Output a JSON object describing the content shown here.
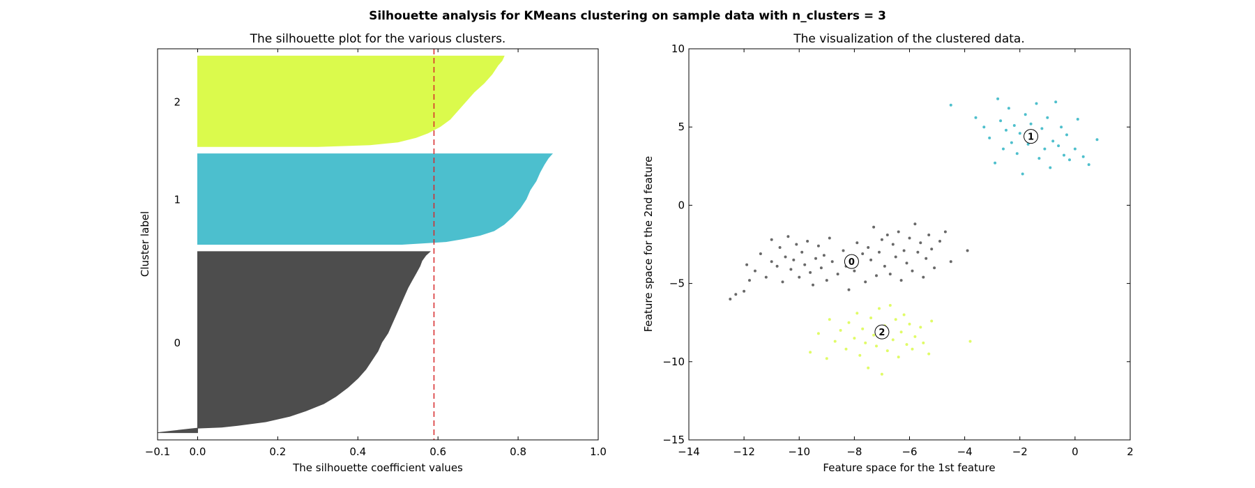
{
  "figure": {
    "suptitle": "Silhouette analysis for KMeans clustering on sample data with n_clusters = 3"
  },
  "chart_data": [
    {
      "type": "area",
      "title": "The silhouette plot for the various clusters.",
      "xlabel": "The silhouette coefficient values",
      "ylabel": "Cluster label",
      "xlim": [
        -0.1,
        1.0
      ],
      "xticks": [
        "−0.1",
        "0.0",
        "0.2",
        "0.4",
        "0.6",
        "0.8",
        "1.0"
      ],
      "average_silhouette": 0.59,
      "average_line_color": "#d62728",
      "clusters": [
        {
          "label": "0",
          "color": "#4d4d4d",
          "size": 250,
          "profile": [
            [
              0,
              0.58
            ],
            [
              0.02,
              0.57
            ],
            [
              0.05,
              0.56
            ],
            [
              0.08,
              0.555
            ],
            [
              0.12,
              0.545
            ],
            [
              0.16,
              0.535
            ],
            [
              0.2,
              0.525
            ],
            [
              0.25,
              0.515
            ],
            [
              0.3,
              0.505
            ],
            [
              0.35,
              0.495
            ],
            [
              0.4,
              0.485
            ],
            [
              0.45,
              0.475
            ],
            [
              0.5,
              0.46
            ],
            [
              0.55,
              0.45
            ],
            [
              0.6,
              0.435
            ],
            [
              0.65,
              0.42
            ],
            [
              0.7,
              0.4
            ],
            [
              0.75,
              0.375
            ],
            [
              0.8,
              0.345
            ],
            [
              0.84,
              0.315
            ],
            [
              0.88,
              0.27
            ],
            [
              0.91,
              0.23
            ],
            [
              0.94,
              0.17
            ],
            [
              0.96,
              0.1
            ],
            [
              0.97,
              0.06
            ],
            [
              0.975,
              0.0
            ],
            [
              0.98,
              -0.02
            ],
            [
              0.99,
              -0.06
            ],
            [
              1.0,
              -0.1
            ]
          ]
        },
        {
          "label": "1",
          "color": "#4cbfce",
          "size": 125,
          "profile": [
            [
              0,
              0.885
            ],
            [
              0.05,
              0.875
            ],
            [
              0.12,
              0.865
            ],
            [
              0.2,
              0.855
            ],
            [
              0.3,
              0.845
            ],
            [
              0.4,
              0.83
            ],
            [
              0.5,
              0.82
            ],
            [
              0.6,
              0.805
            ],
            [
              0.7,
              0.785
            ],
            [
              0.78,
              0.765
            ],
            [
              0.85,
              0.74
            ],
            [
              0.9,
              0.705
            ],
            [
              0.94,
              0.66
            ],
            [
              0.97,
              0.62
            ],
            [
              1.0,
              0.51
            ]
          ]
        },
        {
          "label": "2",
          "color": "#dbfa4c",
          "size": 125,
          "profile": [
            [
              0,
              0.765
            ],
            [
              0.05,
              0.76
            ],
            [
              0.1,
              0.75
            ],
            [
              0.2,
              0.735
            ],
            [
              0.3,
              0.715
            ],
            [
              0.4,
              0.69
            ],
            [
              0.5,
              0.67
            ],
            [
              0.6,
              0.65
            ],
            [
              0.7,
              0.63
            ],
            [
              0.78,
              0.605
            ],
            [
              0.85,
              0.575
            ],
            [
              0.9,
              0.545
            ],
            [
              0.95,
              0.5
            ],
            [
              0.98,
              0.43
            ],
            [
              1.0,
              0.3
            ]
          ]
        }
      ]
    },
    {
      "type": "scatter",
      "title": "The visualization of the clustered data.",
      "xlabel": "Feature space for the 1st feature",
      "ylabel": "Feature space for the 2nd feature",
      "xlim": [
        -14,
        2
      ],
      "ylim": [
        -15,
        10
      ],
      "xticks": [
        "−14",
        "−12",
        "−10",
        "−8",
        "−6",
        "−4",
        "−2",
        "0",
        "2"
      ],
      "yticks": [
        "−15",
        "−10",
        "−5",
        "0",
        "5",
        "10"
      ],
      "clusters": [
        {
          "label": "0",
          "color": "#4d4d4d",
          "center": [
            -8.1,
            -3.6
          ],
          "points": [
            [
              -12.5,
              -6.0
            ],
            [
              -12.3,
              -5.7
            ],
            [
              -12.0,
              -5.5
            ],
            [
              -11.8,
              -4.8
            ],
            [
              -11.9,
              -3.8
            ],
            [
              -11.6,
              -4.2
            ],
            [
              -11.4,
              -3.1
            ],
            [
              -11.2,
              -4.6
            ],
            [
              -11.0,
              -2.2
            ],
            [
              -11.0,
              -3.6
            ],
            [
              -10.8,
              -3.9
            ],
            [
              -10.7,
              -2.7
            ],
            [
              -10.6,
              -4.9
            ],
            [
              -10.5,
              -3.3
            ],
            [
              -10.4,
              -2.0
            ],
            [
              -10.3,
              -4.1
            ],
            [
              -10.2,
              -3.5
            ],
            [
              -10.1,
              -2.5
            ],
            [
              -10.0,
              -4.6
            ],
            [
              -9.9,
              -3.0
            ],
            [
              -9.8,
              -3.8
            ],
            [
              -9.7,
              -2.3
            ],
            [
              -9.6,
              -4.3
            ],
            [
              -9.5,
              -5.1
            ],
            [
              -9.4,
              -3.4
            ],
            [
              -9.3,
              -2.6
            ],
            [
              -9.2,
              -4.0
            ],
            [
              -9.1,
              -3.2
            ],
            [
              -9.0,
              -4.8
            ],
            [
              -8.9,
              -2.1
            ],
            [
              -8.8,
              -3.6
            ],
            [
              -8.6,
              -4.4
            ],
            [
              -8.4,
              -2.9
            ],
            [
              -8.3,
              -3.9
            ],
            [
              -8.2,
              -5.4
            ],
            [
              -8.0,
              -4.2
            ],
            [
              -7.9,
              -2.4
            ],
            [
              -7.7,
              -3.1
            ],
            [
              -7.6,
              -4.9
            ],
            [
              -7.5,
              -2.7
            ],
            [
              -7.4,
              -3.5
            ],
            [
              -7.3,
              -1.4
            ],
            [
              -7.2,
              -4.5
            ],
            [
              -7.1,
              -3.0
            ],
            [
              -7.0,
              -2.2
            ],
            [
              -6.9,
              -3.9
            ],
            [
              -6.8,
              -1.9
            ],
            [
              -6.7,
              -4.4
            ],
            [
              -6.6,
              -2.5
            ],
            [
              -6.5,
              -3.3
            ],
            [
              -6.4,
              -1.7
            ],
            [
              -6.3,
              -4.8
            ],
            [
              -6.2,
              -2.9
            ],
            [
              -6.1,
              -3.7
            ],
            [
              -6.0,
              -2.1
            ],
            [
              -5.9,
              -4.2
            ],
            [
              -5.8,
              -1.2
            ],
            [
              -5.7,
              -3.0
            ],
            [
              -5.6,
              -2.4
            ],
            [
              -5.5,
              -4.6
            ],
            [
              -5.4,
              -3.4
            ],
            [
              -5.3,
              -1.9
            ],
            [
              -5.2,
              -2.8
            ],
            [
              -5.1,
              -4.0
            ],
            [
              -4.9,
              -2.3
            ],
            [
              -4.7,
              -1.7
            ],
            [
              -4.5,
              -3.6
            ],
            [
              -3.9,
              -2.9
            ]
          ]
        },
        {
          "label": "1",
          "color": "#2fb4c3",
          "center": [
            -1.6,
            4.4
          ],
          "points": [
            [
              -4.5,
              6.4
            ],
            [
              -3.6,
              5.6
            ],
            [
              -3.3,
              5.0
            ],
            [
              -3.1,
              4.3
            ],
            [
              -2.9,
              2.7
            ],
            [
              -2.8,
              6.8
            ],
            [
              -2.7,
              5.4
            ],
            [
              -2.6,
              3.6
            ],
            [
              -2.5,
              4.8
            ],
            [
              -2.4,
              6.2
            ],
            [
              -2.3,
              4.0
            ],
            [
              -2.2,
              5.1
            ],
            [
              -2.1,
              3.3
            ],
            [
              -2.0,
              4.6
            ],
            [
              -1.9,
              2.0
            ],
            [
              -1.8,
              5.8
            ],
            [
              -1.7,
              3.9
            ],
            [
              -1.6,
              5.2
            ],
            [
              -1.5,
              4.3
            ],
            [
              -1.4,
              6.5
            ],
            [
              -1.3,
              3.0
            ],
            [
              -1.2,
              4.9
            ],
            [
              -1.1,
              3.6
            ],
            [
              -1.0,
              5.6
            ],
            [
              -0.9,
              2.4
            ],
            [
              -0.8,
              4.1
            ],
            [
              -0.7,
              6.6
            ],
            [
              -0.6,
              3.8
            ],
            [
              -0.5,
              5.0
            ],
            [
              -0.4,
              3.2
            ],
            [
              -0.3,
              4.5
            ],
            [
              -0.2,
              2.9
            ],
            [
              0.0,
              3.6
            ],
            [
              0.1,
              5.5
            ],
            [
              0.3,
              3.1
            ],
            [
              0.5,
              2.6
            ],
            [
              0.8,
              4.2
            ]
          ]
        },
        {
          "label": "2",
          "color": "#dbfa4c",
          "center": [
            -7.0,
            -8.1
          ],
          "points": [
            [
              -9.6,
              -9.4
            ],
            [
              -9.3,
              -8.2
            ],
            [
              -9.0,
              -9.8
            ],
            [
              -8.9,
              -7.3
            ],
            [
              -8.7,
              -8.7
            ],
            [
              -8.5,
              -8.0
            ],
            [
              -8.3,
              -9.2
            ],
            [
              -8.2,
              -7.5
            ],
            [
              -8.0,
              -8.5
            ],
            [
              -7.9,
              -6.9
            ],
            [
              -7.8,
              -9.6
            ],
            [
              -7.7,
              -7.9
            ],
            [
              -7.6,
              -8.8
            ],
            [
              -7.5,
              -10.4
            ],
            [
              -7.4,
              -7.2
            ],
            [
              -7.3,
              -8.3
            ],
            [
              -7.2,
              -9.0
            ],
            [
              -7.1,
              -6.6
            ],
            [
              -7.0,
              -10.8
            ],
            [
              -6.9,
              -7.7
            ],
            [
              -6.8,
              -9.3
            ],
            [
              -6.7,
              -6.4
            ],
            [
              -6.6,
              -8.6
            ],
            [
              -6.5,
              -7.3
            ],
            [
              -6.4,
              -9.7
            ],
            [
              -6.3,
              -8.1
            ],
            [
              -6.2,
              -7.0
            ],
            [
              -6.1,
              -8.9
            ],
            [
              -6.0,
              -7.6
            ],
            [
              -5.9,
              -9.2
            ],
            [
              -5.8,
              -8.4
            ],
            [
              -5.6,
              -7.8
            ],
            [
              -5.5,
              -8.8
            ],
            [
              -5.3,
              -9.5
            ],
            [
              -5.2,
              -7.4
            ],
            [
              -3.8,
              -8.7
            ]
          ]
        }
      ]
    }
  ]
}
